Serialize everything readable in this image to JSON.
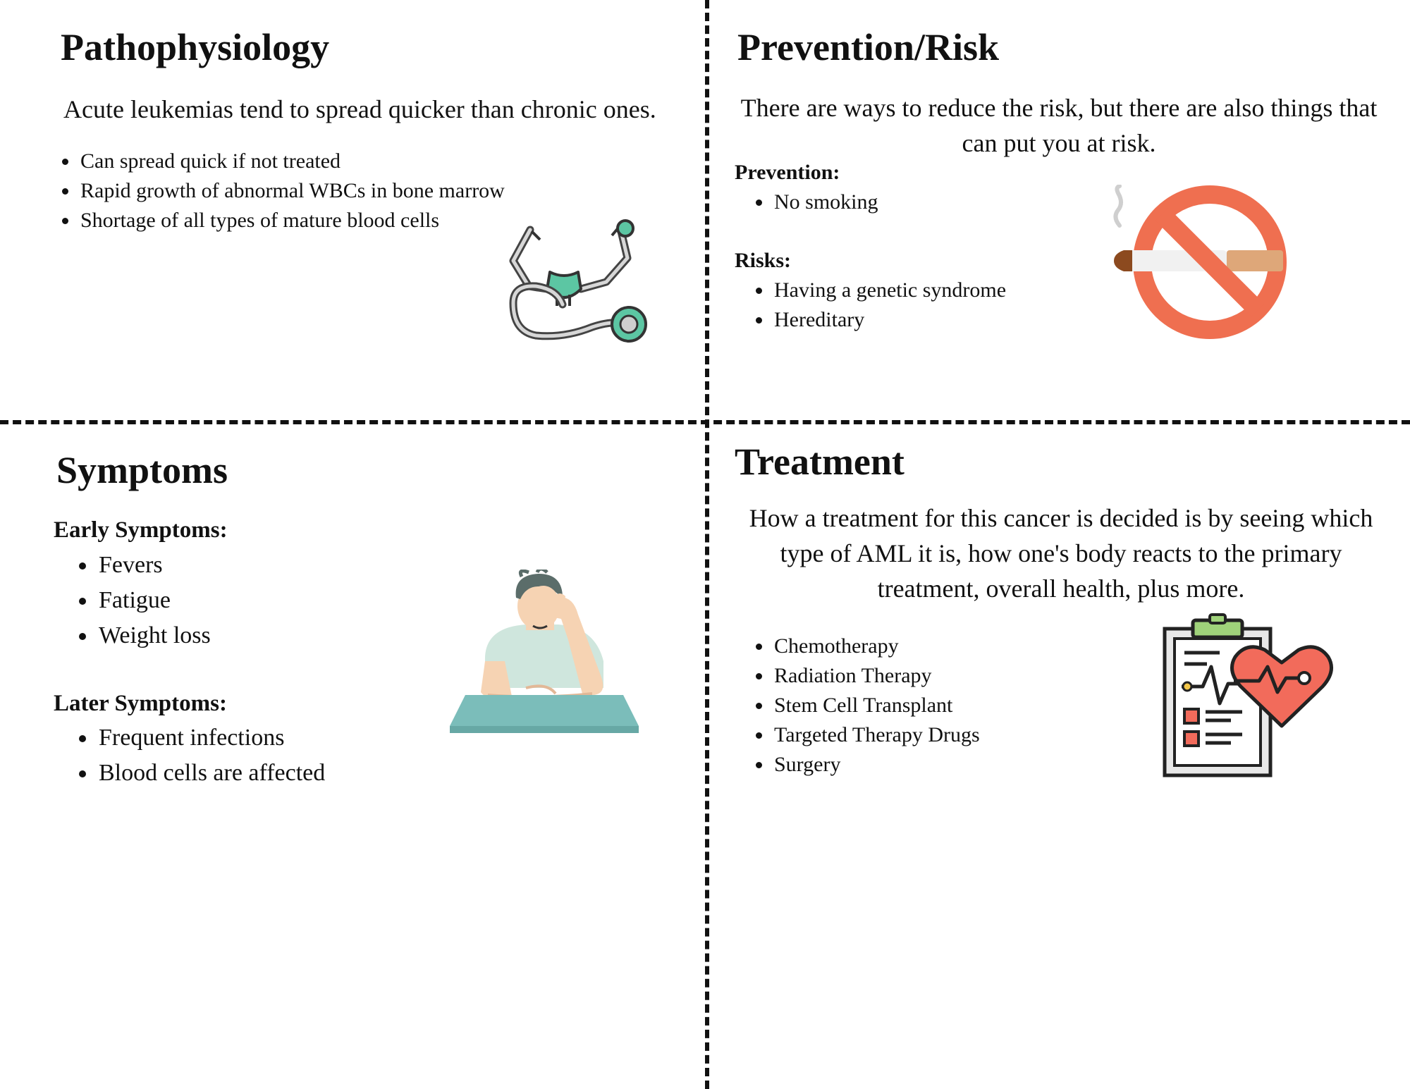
{
  "pathophysiology": {
    "title": "Pathophysiology",
    "intro": "Acute leukemias tend to spread quicker than chronic ones.",
    "items": [
      "Can spread quick if not treated",
      "Rapid growth of abnormal WBCs in bone marrow",
      "Shortage of all types of mature blood cells"
    ]
  },
  "prevention": {
    "title": "Prevention/Risk",
    "intro": "There are ways to reduce the risk, but there are also things that can put you at risk.",
    "prevention_label": "Prevention:",
    "prevention_items": [
      "No smoking"
    ],
    "risks_label": "Risks:",
    "risk_items": [
      "Having a genetic syndrome",
      "Hereditary"
    ]
  },
  "symptoms": {
    "title": "Symptoms",
    "early_label": "Early Symptoms:",
    "early_items": [
      "Fevers",
      "Fatigue",
      "Weight loss"
    ],
    "later_label": "Later Symptoms:",
    "later_items": [
      "Frequent infections",
      "Blood cells are affected"
    ]
  },
  "treatment": {
    "title": "Treatment",
    "intro": "How a treatment for this cancer is decided is by seeing which type of AML it is, how one's body reacts to the primary treatment, overall health, plus more.",
    "items": [
      "Chemotherapy",
      "Radiation Therapy",
      "Stem Cell Transplant",
      "Targeted Therapy Drugs",
      "Surgery"
    ]
  },
  "colors": {
    "teal": "#5cc6a3",
    "no_sign": "#ef6f50",
    "heart": "#f26b5b",
    "desk": "#7bbdba"
  }
}
